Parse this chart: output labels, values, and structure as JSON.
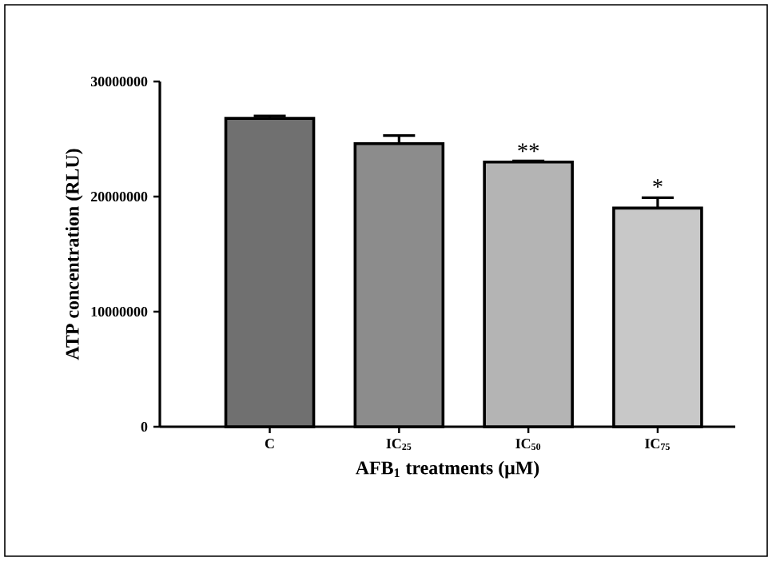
{
  "chart_data": {
    "type": "bar",
    "xlabel": "AFB$_{1}$ treatments (μM)",
    "ylabel": "ATP concentration (RLU)",
    "categories": [
      "C",
      "IC$_{25}$",
      "IC$_{50}$",
      "IC$_{75}$"
    ],
    "values": [
      26800000,
      24600000,
      23000000,
      19000000
    ],
    "errors": [
      200000,
      700000,
      100000,
      900000
    ],
    "colors": [
      "#707070",
      "#8c8c8c",
      "#b4b4b4",
      "#c8c8c8"
    ],
    "ylim": [
      0,
      30000000
    ],
    "yticks": [
      0,
      10000000,
      20000000,
      30000000
    ],
    "annotations": [
      {
        "text": "**",
        "x": "IC$_{50}$",
        "y": 23000000
      },
      {
        "text": "*",
        "x": "IC$_{75}$",
        "y": 19900000
      }
    ]
  }
}
